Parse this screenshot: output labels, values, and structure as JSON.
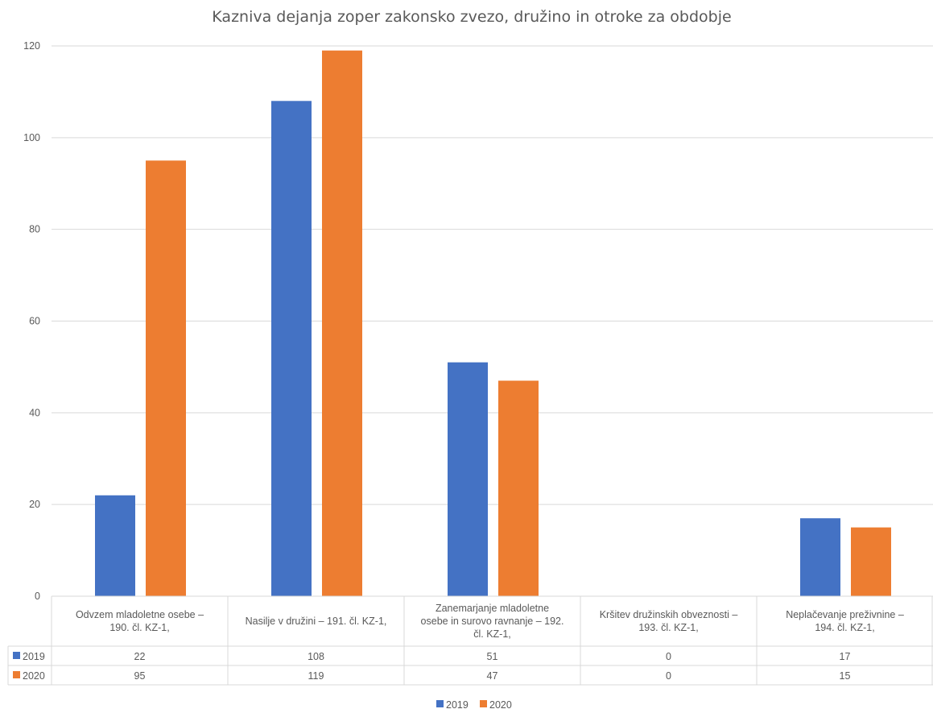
{
  "chart_data": {
    "type": "bar",
    "title": "Kazniva dejanja  zoper zakonsko zvezo, družino in otroke za obdobje",
    "categories": [
      [
        "Odvzem mladoletne osebe –",
        "190. čl. KZ-1,"
      ],
      [
        "Nasilje v družini – 191. čl. KZ-1,"
      ],
      [
        "Zanemarjanje mladoletne",
        "osebe in surovo ravnanje – 192.",
        "čl. KZ-1,"
      ],
      [
        "Kršitev družinskih obveznosti –",
        "193. čl. KZ-1,"
      ],
      [
        "Neplačevanje preživnine –",
        "194. čl. KZ-1,"
      ]
    ],
    "series": [
      {
        "name": "2019",
        "color": "#4472C4",
        "values": [
          22,
          108,
          51,
          0,
          17
        ]
      },
      {
        "name": "2020",
        "color": "#ED7D31",
        "values": [
          95,
          119,
          47,
          0,
          15
        ]
      }
    ],
    "ylim": [
      0,
      120
    ],
    "yticks": [
      0,
      20,
      40,
      60,
      80,
      100,
      120
    ],
    "grid": true,
    "data_table": true,
    "legend_position": "bottom"
  }
}
